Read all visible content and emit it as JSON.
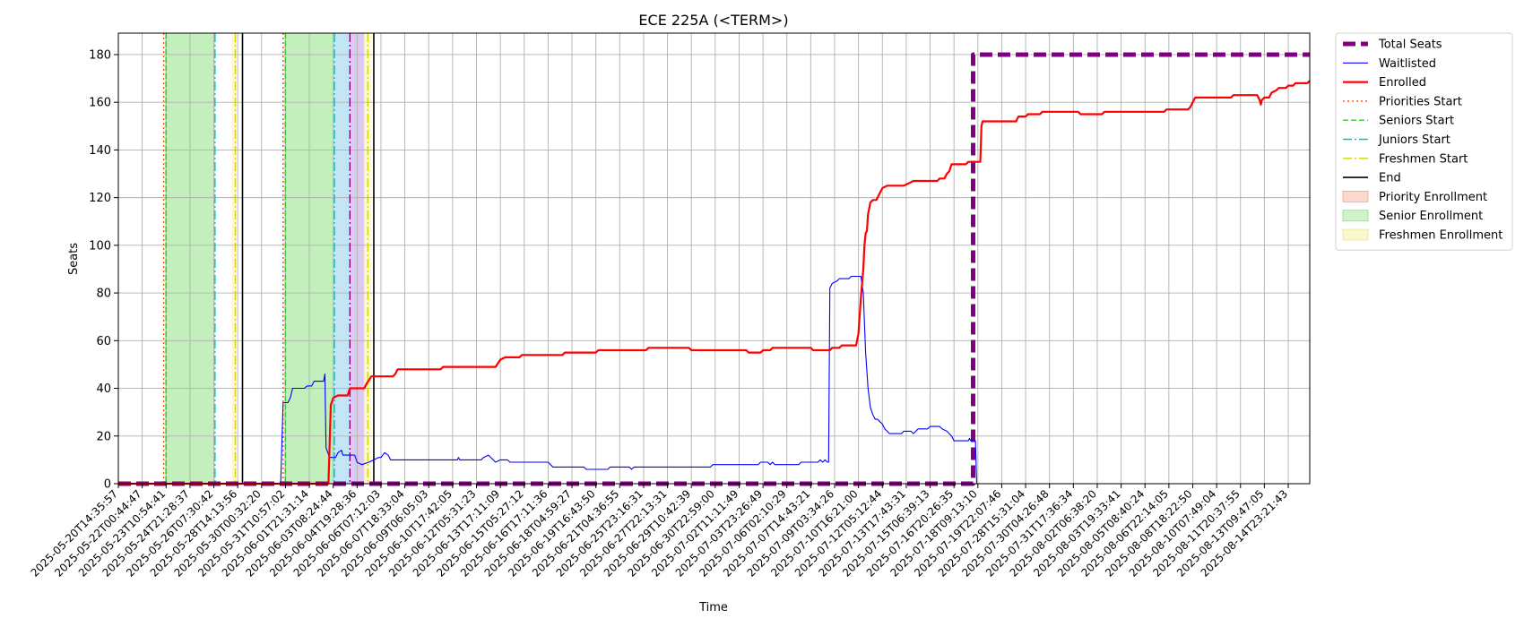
{
  "chart_data": {
    "type": "line",
    "title": "ECE 225A (<TERM>)",
    "xlabel": "Time",
    "ylabel": "Seats",
    "ylim": [
      0,
      189
    ],
    "yticks": [
      0,
      20,
      40,
      60,
      80,
      100,
      120,
      140,
      160,
      180
    ],
    "grid": true,
    "legend_position": "outside-right",
    "x_ticks": [
      "2025-05-20T14:35:57",
      "2025-05-22T00:44:47",
      "2025-05-23T10:54:41",
      "2025-05-24T21:28:37",
      "2025-05-26T07:30:42",
      "2025-05-28T14:13:56",
      "2025-05-30T00:32:20",
      "2025-05-31T10:57:02",
      "2025-06-01T21:31:14",
      "2025-06-03T08:24:44",
      "2025-06-04T19:28:36",
      "2025-06-06T07:12:03",
      "2025-06-07T18:33:04",
      "2025-06-09T06:05:03",
      "2025-06-10T17:42:05",
      "2025-06-12T05:31:23",
      "2025-06-13T17:11:09",
      "2025-06-15T05:27:12",
      "2025-06-16T17:11:36",
      "2025-06-18T04:59:27",
      "2025-06-19T16:43:50",
      "2025-06-21T04:36:55",
      "2025-06-25T23:16:31",
      "2025-06-27T22:13:31",
      "2025-06-29T10:42:39",
      "2025-06-30T22:59:00",
      "2025-07-02T11:11:49",
      "2025-07-03T23:26:49",
      "2025-07-06T02:10:29",
      "2025-07-07T14:43:21",
      "2025-07-09T03:34:26",
      "2025-07-10T16:21:00",
      "2025-07-12T05:12:44",
      "2025-07-13T17:43:31",
      "2025-07-15T06:39:13",
      "2025-07-16T20:26:35",
      "2025-07-18T09:13:10",
      "2025-07-19T22:07:46",
      "2025-07-28T15:31:04",
      "2025-07-30T04:26:48",
      "2025-07-31T17:36:34",
      "2025-08-02T06:38:20",
      "2025-08-03T19:33:41",
      "2025-08-05T08:40:24",
      "2025-08-06T22:14:05",
      "2025-08-08T18:22:50",
      "2025-08-10T07:49:04",
      "2025-08-11T20:37:55",
      "2025-08-13T09:47:05",
      "2025-08-14T23:21:43"
    ],
    "x_range": [
      0,
      49.9
    ],
    "series": [
      {
        "name": "Total Seats",
        "color": "#800080",
        "style": "dashed-thick",
        "points": [
          [
            0,
            0
          ],
          [
            35.8,
            0
          ],
          [
            35.8,
            180
          ],
          [
            49.9,
            180
          ]
        ]
      },
      {
        "name": "Waitlisted",
        "color": "#0000ff",
        "style": "solid-thin",
        "points": [
          [
            0,
            0
          ],
          [
            6.8,
            0
          ],
          [
            6.9,
            34
          ],
          [
            7.1,
            34
          ],
          [
            7.2,
            36
          ],
          [
            7.3,
            40
          ],
          [
            7.8,
            40
          ],
          [
            7.9,
            41
          ],
          [
            8.1,
            41
          ],
          [
            8.2,
            43
          ],
          [
            8.6,
            43
          ],
          [
            8.65,
            46
          ],
          [
            8.7,
            15
          ],
          [
            8.85,
            11
          ],
          [
            9.1,
            11
          ],
          [
            9.2,
            13
          ],
          [
            9.35,
            14
          ],
          [
            9.4,
            12
          ],
          [
            9.9,
            12
          ],
          [
            10.0,
            9
          ],
          [
            10.2,
            8
          ],
          [
            10.5,
            9
          ],
          [
            10.7,
            10
          ],
          [
            10.9,
            11
          ],
          [
            11.0,
            11
          ],
          [
            11.15,
            13
          ],
          [
            11.3,
            12
          ],
          [
            11.4,
            10
          ],
          [
            14.2,
            10
          ],
          [
            14.25,
            11
          ],
          [
            14.3,
            10
          ],
          [
            15.2,
            10
          ],
          [
            15.3,
            11
          ],
          [
            15.5,
            12
          ],
          [
            15.7,
            10
          ],
          [
            15.8,
            9
          ],
          [
            16.0,
            10
          ],
          [
            16.3,
            10
          ],
          [
            16.4,
            9
          ],
          [
            18.0,
            9
          ],
          [
            18.1,
            8
          ],
          [
            18.2,
            7
          ],
          [
            19.5,
            7
          ],
          [
            19.6,
            6
          ],
          [
            20.5,
            6
          ],
          [
            20.6,
            7
          ],
          [
            21.4,
            7
          ],
          [
            21.5,
            6
          ],
          [
            21.6,
            7
          ],
          [
            24.8,
            7
          ],
          [
            24.9,
            8
          ],
          [
            26.8,
            8
          ],
          [
            26.9,
            9
          ],
          [
            27.2,
            9
          ],
          [
            27.3,
            8
          ],
          [
            27.4,
            9
          ],
          [
            27.5,
            8
          ],
          [
            28.5,
            8
          ],
          [
            28.6,
            9
          ],
          [
            29.3,
            9
          ],
          [
            29.4,
            10
          ],
          [
            29.5,
            9
          ],
          [
            29.6,
            10
          ],
          [
            29.7,
            9
          ],
          [
            29.75,
            9
          ],
          [
            29.8,
            82
          ],
          [
            29.9,
            84
          ],
          [
            30.1,
            85
          ],
          [
            30.2,
            86
          ],
          [
            30.6,
            86
          ],
          [
            30.7,
            87
          ],
          [
            31.1,
            87
          ],
          [
            31.2,
            80
          ],
          [
            31.3,
            55
          ],
          [
            31.4,
            40
          ],
          [
            31.5,
            32
          ],
          [
            31.6,
            29
          ],
          [
            31.7,
            27
          ],
          [
            31.8,
            27
          ],
          [
            31.9,
            26
          ],
          [
            32.0,
            25
          ],
          [
            32.1,
            23
          ],
          [
            32.2,
            22
          ],
          [
            32.3,
            21
          ],
          [
            32.8,
            21
          ],
          [
            32.9,
            22
          ],
          [
            33.2,
            22
          ],
          [
            33.3,
            21
          ],
          [
            33.4,
            22
          ],
          [
            33.5,
            23
          ],
          [
            33.9,
            23
          ],
          [
            34.0,
            24
          ],
          [
            34.4,
            24
          ],
          [
            34.5,
            23
          ],
          [
            34.7,
            22
          ],
          [
            34.8,
            21
          ],
          [
            34.9,
            20
          ],
          [
            35.0,
            18
          ],
          [
            35.6,
            18
          ],
          [
            35.65,
            19
          ],
          [
            35.7,
            18
          ],
          [
            35.9,
            18
          ],
          [
            35.95,
            0
          ],
          [
            49.9,
            0
          ]
        ]
      },
      {
        "name": "Enrolled",
        "color": "#ff0000",
        "style": "solid-thick",
        "points": [
          [
            0,
            0
          ],
          [
            8.8,
            0
          ],
          [
            8.9,
            33
          ],
          [
            9.0,
            36
          ],
          [
            9.2,
            37
          ],
          [
            9.6,
            37
          ],
          [
            9.7,
            40
          ],
          [
            10.3,
            40
          ],
          [
            10.4,
            42
          ],
          [
            10.6,
            45
          ],
          [
            11.5,
            45
          ],
          [
            11.6,
            46
          ],
          [
            11.7,
            48
          ],
          [
            13.5,
            48
          ],
          [
            13.6,
            49
          ],
          [
            15.8,
            49
          ],
          [
            16.0,
            52
          ],
          [
            16.2,
            53
          ],
          [
            16.8,
            53
          ],
          [
            16.9,
            54
          ],
          [
            18.6,
            54
          ],
          [
            18.7,
            55
          ],
          [
            20.0,
            55
          ],
          [
            20.1,
            56
          ],
          [
            22.1,
            56
          ],
          [
            22.2,
            57
          ],
          [
            23.9,
            57
          ],
          [
            24.0,
            56
          ],
          [
            26.3,
            56
          ],
          [
            26.4,
            55
          ],
          [
            26.9,
            55
          ],
          [
            27.0,
            56
          ],
          [
            27.3,
            56
          ],
          [
            27.4,
            57
          ],
          [
            29.0,
            57
          ],
          [
            29.1,
            56
          ],
          [
            29.8,
            56
          ],
          [
            29.9,
            57
          ],
          [
            30.2,
            57
          ],
          [
            30.3,
            58
          ],
          [
            30.9,
            58
          ],
          [
            31.0,
            63
          ],
          [
            31.1,
            78
          ],
          [
            31.2,
            90
          ],
          [
            31.25,
            100
          ],
          [
            31.3,
            105
          ],
          [
            31.35,
            106
          ],
          [
            31.4,
            113
          ],
          [
            31.5,
            118
          ],
          [
            31.6,
            119
          ],
          [
            31.75,
            119
          ],
          [
            31.9,
            122
          ],
          [
            32.0,
            124
          ],
          [
            32.2,
            125
          ],
          [
            32.9,
            125
          ],
          [
            33.1,
            126
          ],
          [
            33.3,
            127
          ],
          [
            34.3,
            127
          ],
          [
            34.4,
            128
          ],
          [
            34.6,
            128
          ],
          [
            34.7,
            130
          ],
          [
            34.8,
            131
          ],
          [
            34.9,
            134
          ],
          [
            35.5,
            134
          ],
          [
            35.6,
            135
          ],
          [
            36.1,
            135
          ],
          [
            36.15,
            150
          ],
          [
            36.2,
            152
          ],
          [
            37.6,
            152
          ],
          [
            37.7,
            154
          ],
          [
            38.0,
            154
          ],
          [
            38.1,
            155
          ],
          [
            38.6,
            155
          ],
          [
            38.7,
            156
          ],
          [
            40.2,
            156
          ],
          [
            40.3,
            155
          ],
          [
            41.2,
            155
          ],
          [
            41.3,
            156
          ],
          [
            43.8,
            156
          ],
          [
            43.9,
            157
          ],
          [
            44.8,
            157
          ],
          [
            44.9,
            158
          ],
          [
            45.0,
            160
          ],
          [
            45.1,
            162
          ],
          [
            46.6,
            162
          ],
          [
            46.7,
            163
          ],
          [
            47.7,
            163
          ],
          [
            47.8,
            161
          ],
          [
            47.85,
            159
          ],
          [
            47.9,
            161
          ],
          [
            48.0,
            162
          ],
          [
            48.2,
            162
          ],
          [
            48.3,
            164
          ],
          [
            48.5,
            165
          ],
          [
            48.6,
            166
          ],
          [
            48.9,
            166
          ],
          [
            49.0,
            167
          ],
          [
            49.2,
            167
          ],
          [
            49.3,
            168
          ],
          [
            49.8,
            168
          ],
          [
            49.9,
            169
          ]
        ]
      }
    ],
    "vertical_markers": [
      {
        "name": "Priorities Start",
        "color": "#ff4500",
        "style": "dotted",
        "x": [
          1.9,
          6.9
        ]
      },
      {
        "name": "Seniors Start",
        "color": "#32cd32",
        "style": "dashed",
        "x": [
          2.0,
          7.0
        ]
      },
      {
        "name": "Juniors Start",
        "color": "#00bfbf",
        "style": "dashdot",
        "x": [
          4.05,
          9.05
        ]
      },
      {
        "name": "Freshmen Start",
        "color": "#d4d400",
        "style": "dashdot",
        "x": [
          4.9,
          10.45
        ]
      },
      {
        "name": "End",
        "color": "#000000",
        "style": "solid",
        "x": [
          5.2,
          10.7
        ]
      },
      {
        "name": "",
        "color": "#800080",
        "style": "dashdot",
        "x": [
          9.7
        ]
      }
    ],
    "shaded_regions": [
      {
        "name": "Senior Enrollment",
        "color": "#b8ecb0",
        "x0": 1.95,
        "x1": 4.05
      },
      {
        "name": "",
        "color": "#fff6c6",
        "x0": 4.75,
        "x1": 4.95
      },
      {
        "name": "Senior Enrollment",
        "color": "#b8ecb0",
        "x0": 6.95,
        "x1": 9.0
      },
      {
        "name": "",
        "color": "#b9e2f4",
        "x0": 9.0,
        "x1": 9.7
      },
      {
        "name": "",
        "color": "#d5c2f0",
        "x0": 9.7,
        "x1": 10.3
      },
      {
        "name": "",
        "color": "#fff6c6",
        "x0": 10.3,
        "x1": 10.6
      }
    ],
    "legend": [
      {
        "label": "Total Seats",
        "kind": "line",
        "color": "#800080",
        "style": "dashed-thick"
      },
      {
        "label": "Waitlisted",
        "kind": "line",
        "color": "#0000ff",
        "style": "solid-thin"
      },
      {
        "label": "Enrolled",
        "kind": "line",
        "color": "#ff0000",
        "style": "solid-thick"
      },
      {
        "label": "Priorities Start",
        "kind": "line",
        "color": "#ff4500",
        "style": "dotted"
      },
      {
        "label": "Seniors Start",
        "kind": "line",
        "color": "#32cd32",
        "style": "dashed"
      },
      {
        "label": "Juniors Start",
        "kind": "line",
        "color": "#00bfbf",
        "style": "dashdot"
      },
      {
        "label": "Freshmen Start",
        "kind": "line",
        "color": "#d4d400",
        "style": "dashdot"
      },
      {
        "label": "End",
        "kind": "line",
        "color": "#000000",
        "style": "solid"
      },
      {
        "label": "Priority Enrollment",
        "kind": "patch",
        "color": "#fbd9cc",
        "edge": "#f4a582"
      },
      {
        "label": "Senior Enrollment",
        "kind": "patch",
        "color": "#d2f2cc",
        "edge": "#9ed39a"
      },
      {
        "label": "Freshmen Enrollment",
        "kind": "patch",
        "color": "#f8f8cc",
        "edge": "#e8e89a"
      }
    ]
  }
}
